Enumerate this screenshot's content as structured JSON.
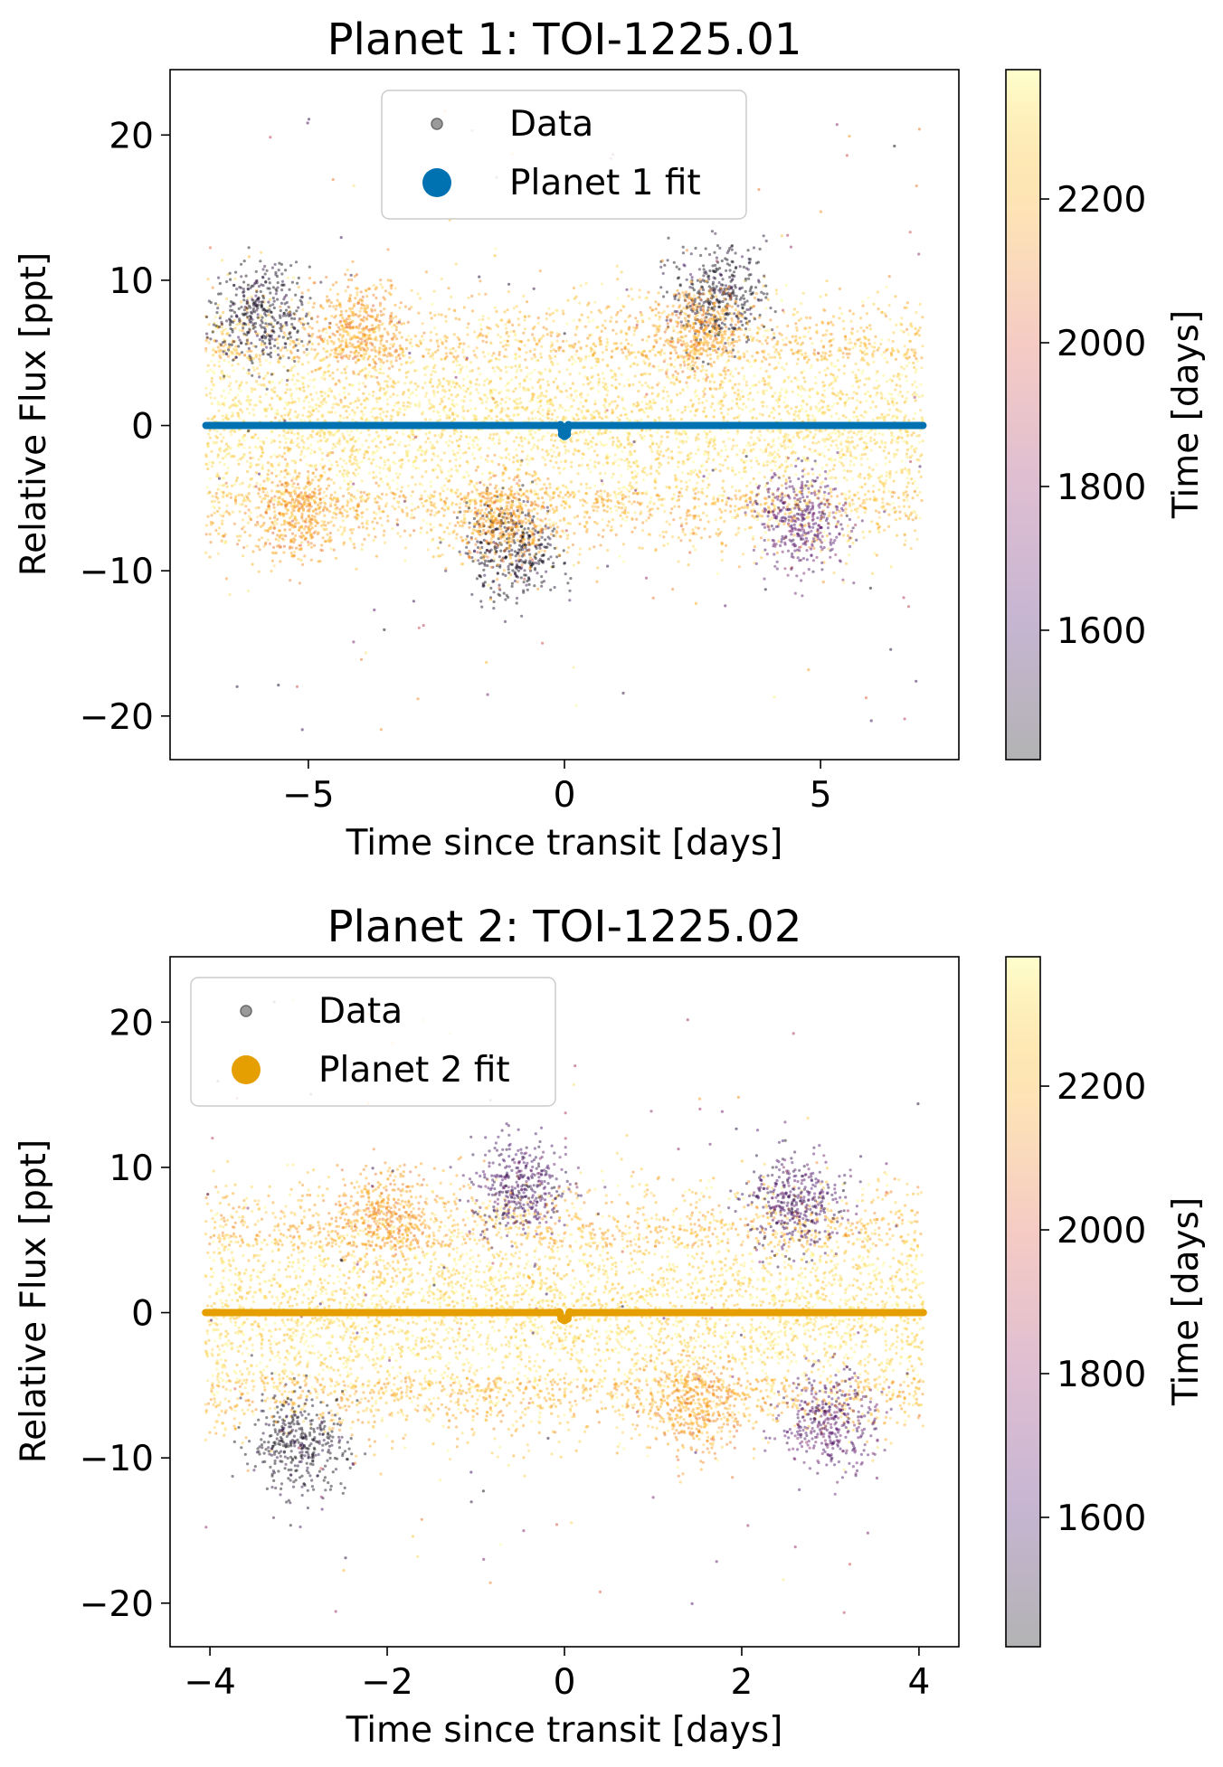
{
  "figure": {
    "colormap_stops": [
      "#000004",
      "#420a68",
      "#932667",
      "#dd513a",
      "#fca50a",
      "#fcffa4"
    ]
  },
  "chart_data": [
    {
      "type": "scatter",
      "title": "Planet 1: TOI-1225.01",
      "xlabel": "Time since transit [days]",
      "ylabel": "Relative Flux [ppt]",
      "xlim": [
        -7.7,
        7.7
      ],
      "ylim": [
        -23,
        24.5
      ],
      "xticks": [
        -5,
        0,
        5
      ],
      "xtick_labels": [
        "−5",
        "0",
        "5"
      ],
      "yticks": [
        -20,
        -10,
        0,
        10,
        20
      ],
      "ytick_labels": [
        "−20",
        "−10",
        "0",
        "10",
        "20"
      ],
      "grid": false,
      "legend": {
        "position": "top-center",
        "entries": [
          {
            "label": "Data",
            "marker": "small-gray-dot"
          },
          {
            "label": "Planet 1 fit",
            "marker": "large-dot",
            "color": "#0072b2"
          }
        ]
      },
      "data_scatter": {
        "x_range": [
          -7.0,
          7.0
        ],
        "y_core_spread": 3.5,
        "y_outer_range": [
          -21,
          22
        ],
        "color_by": "Time [days]",
        "clumps": [
          {
            "x": -5.9,
            "y": 7.5,
            "color_value": 1450
          },
          {
            "x": -4.0,
            "y": 6.5,
            "color_value": 2150
          },
          {
            "x": -1.0,
            "y": -8.5,
            "color_value": 1450
          },
          {
            "x": -1.2,
            "y": -6.5,
            "color_value": 2150
          },
          {
            "x": 3.0,
            "y": 9.0,
            "color_value": 1450
          },
          {
            "x": 2.6,
            "y": 6.5,
            "color_value": 2150
          },
          {
            "x": 4.6,
            "y": -6.5,
            "color_value": 1650
          },
          {
            "x": -5.2,
            "y": -6.0,
            "color_value": 2150
          }
        ]
      },
      "fit_series": {
        "name": "Planet 1 fit",
        "color": "#0072b2",
        "x": [
          -7.0,
          -0.08,
          -0.04,
          0.0,
          0.04,
          0.08,
          7.0
        ],
        "y": [
          0.0,
          0.0,
          -0.6,
          -0.7,
          -0.6,
          0.0,
          0.0
        ]
      },
      "colorbar": {
        "label": "Time [days]",
        "range": [
          1420,
          2380
        ],
        "ticks": [
          1600,
          1800,
          2000,
          2200
        ],
        "tick_labels": [
          "1600",
          "1800",
          "2000",
          "2200"
        ]
      }
    },
    {
      "type": "scatter",
      "title": "Planet 2: TOI-1225.02",
      "xlabel": "Time since transit [days]",
      "ylabel": "Relative Flux [ppt]",
      "xlim": [
        -4.45,
        4.45
      ],
      "ylim": [
        -23,
        24.5
      ],
      "xticks": [
        -4,
        -2,
        0,
        2,
        4
      ],
      "xtick_labels": [
        "−4",
        "−2",
        "0",
        "2",
        "4"
      ],
      "yticks": [
        -20,
        -10,
        0,
        10,
        20
      ],
      "ytick_labels": [
        "−20",
        "−10",
        "0",
        "10",
        "20"
      ],
      "grid": false,
      "legend": {
        "position": "top-left",
        "entries": [
          {
            "label": "Data",
            "marker": "small-gray-dot"
          },
          {
            "label": "Planet 2 fit",
            "marker": "large-dot",
            "color": "#e69f00"
          }
        ]
      },
      "data_scatter": {
        "x_range": [
          -4.05,
          4.05
        ],
        "y_core_spread": 3.5,
        "y_outer_range": [
          -21,
          22
        ],
        "color_by": "Time [days]",
        "clumps": [
          {
            "x": -3.0,
            "y": -9.0,
            "color_value": 1450
          },
          {
            "x": -0.5,
            "y": 8.5,
            "color_value": 1600
          },
          {
            "x": 2.6,
            "y": 7.5,
            "color_value": 1600
          },
          {
            "x": 3.0,
            "y": -7.5,
            "color_value": 1650
          },
          {
            "x": -2.0,
            "y": 6.5,
            "color_value": 2150
          },
          {
            "x": 1.5,
            "y": -6.5,
            "color_value": 2150
          }
        ]
      },
      "fit_series": {
        "name": "Planet 2 fit",
        "color": "#e69f00",
        "x": [
          -4.05,
          -0.06,
          -0.03,
          0.0,
          0.03,
          0.06,
          4.05
        ],
        "y": [
          0.0,
          0.0,
          -0.4,
          -0.5,
          -0.4,
          0.0,
          0.0
        ]
      },
      "colorbar": {
        "label": "Time [days]",
        "range": [
          1420,
          2380
        ],
        "ticks": [
          1600,
          1800,
          2000,
          2200
        ],
        "tick_labels": [
          "1600",
          "1800",
          "2000",
          "2200"
        ]
      }
    }
  ]
}
